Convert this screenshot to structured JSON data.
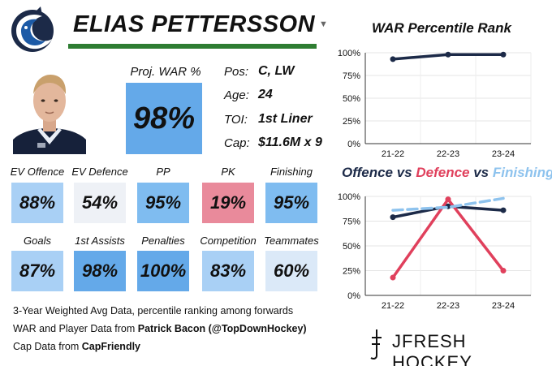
{
  "header": {
    "player_name": "ELIAS PETTERSSON",
    "dropdown_icon": "chevron-down-icon"
  },
  "projected_war": {
    "label": "Proj. WAR %",
    "value": "98%"
  },
  "info": [
    {
      "label": "Pos:",
      "value": "C, LW"
    },
    {
      "label": "Age:",
      "value": "24"
    },
    {
      "label": "TOI:",
      "value": "1st Liner"
    },
    {
      "label": "Cap:",
      "value": "$11.6M x 9"
    }
  ],
  "stats_row1": [
    {
      "label": "EV Offence",
      "value": "88%",
      "color": "#a9d0f5"
    },
    {
      "label": "EV Defence",
      "value": "54%",
      "color": "#eef1f6"
    },
    {
      "label": "PP",
      "value": "95%",
      "color": "#7fbcf0"
    },
    {
      "label": "PK",
      "value": "19%",
      "color": "#e98a9b"
    },
    {
      "label": "Finishing",
      "value": "95%",
      "color": "#7fbcf0"
    }
  ],
  "stats_row2": [
    {
      "label": "Goals",
      "value": "87%",
      "color": "#a9d0f5"
    },
    {
      "label": "1st Assists",
      "value": "98%",
      "color": "#64a9e9"
    },
    {
      "label": "Penalties",
      "value": "100%",
      "color": "#64a9e9"
    },
    {
      "label": "Competition",
      "value": "83%",
      "color": "#a9d0f5"
    },
    {
      "label": "Teammates",
      "value": "60%",
      "color": "#dbe9f8"
    }
  ],
  "footer": {
    "line1": "3-Year Weighted Avg Data, percentile ranking among forwards",
    "line2_prefix": "WAR and Player Data from ",
    "line2_bold": "Patrick Bacon (@TopDownHockey)",
    "line3_prefix": "Cap Data from ",
    "line3_bold": "CapFriendly"
  },
  "brand": {
    "text": "JFRESH HOCKEY"
  },
  "colors": {
    "navy": "#1c2a48",
    "red": "#e0405c",
    "light_blue": "#8ec3ee",
    "green": "#2e7d32"
  },
  "chart_data": [
    {
      "type": "line",
      "title": "WAR Percentile Rank",
      "categories": [
        "21-22",
        "22-23",
        "23-24"
      ],
      "series": [
        {
          "name": "WAR",
          "values": [
            93,
            98,
            98
          ],
          "color": "#1c2a48"
        }
      ],
      "ylim": [
        0,
        100
      ],
      "yticks": [
        "0%",
        "25%",
        "50%",
        "75%",
        "100%"
      ],
      "grid": true
    },
    {
      "type": "line",
      "title_parts": [
        {
          "text": "Offence",
          "color": "#1c2a48"
        },
        {
          "text": " vs ",
          "color": "#1c2a48"
        },
        {
          "text": "Defence",
          "color": "#e0405c"
        },
        {
          "text": " vs ",
          "color": "#1c2a48"
        },
        {
          "text": "Finishing",
          "color": "#8ec3ee"
        }
      ],
      "categories": [
        "21-22",
        "22-23",
        "23-24"
      ],
      "series": [
        {
          "name": "Offence",
          "values": [
            79,
            90,
            86
          ],
          "color": "#1c2a48",
          "dash": false
        },
        {
          "name": "Defence",
          "values": [
            18,
            97,
            25
          ],
          "color": "#e0405c",
          "dash": false
        },
        {
          "name": "Finishing",
          "values": [
            86,
            89,
            98
          ],
          "color": "#8ec3ee",
          "dash": true
        }
      ],
      "ylim": [
        0,
        100
      ],
      "yticks": [
        "0%",
        "25%",
        "50%",
        "75%",
        "100%"
      ],
      "grid": true
    }
  ]
}
